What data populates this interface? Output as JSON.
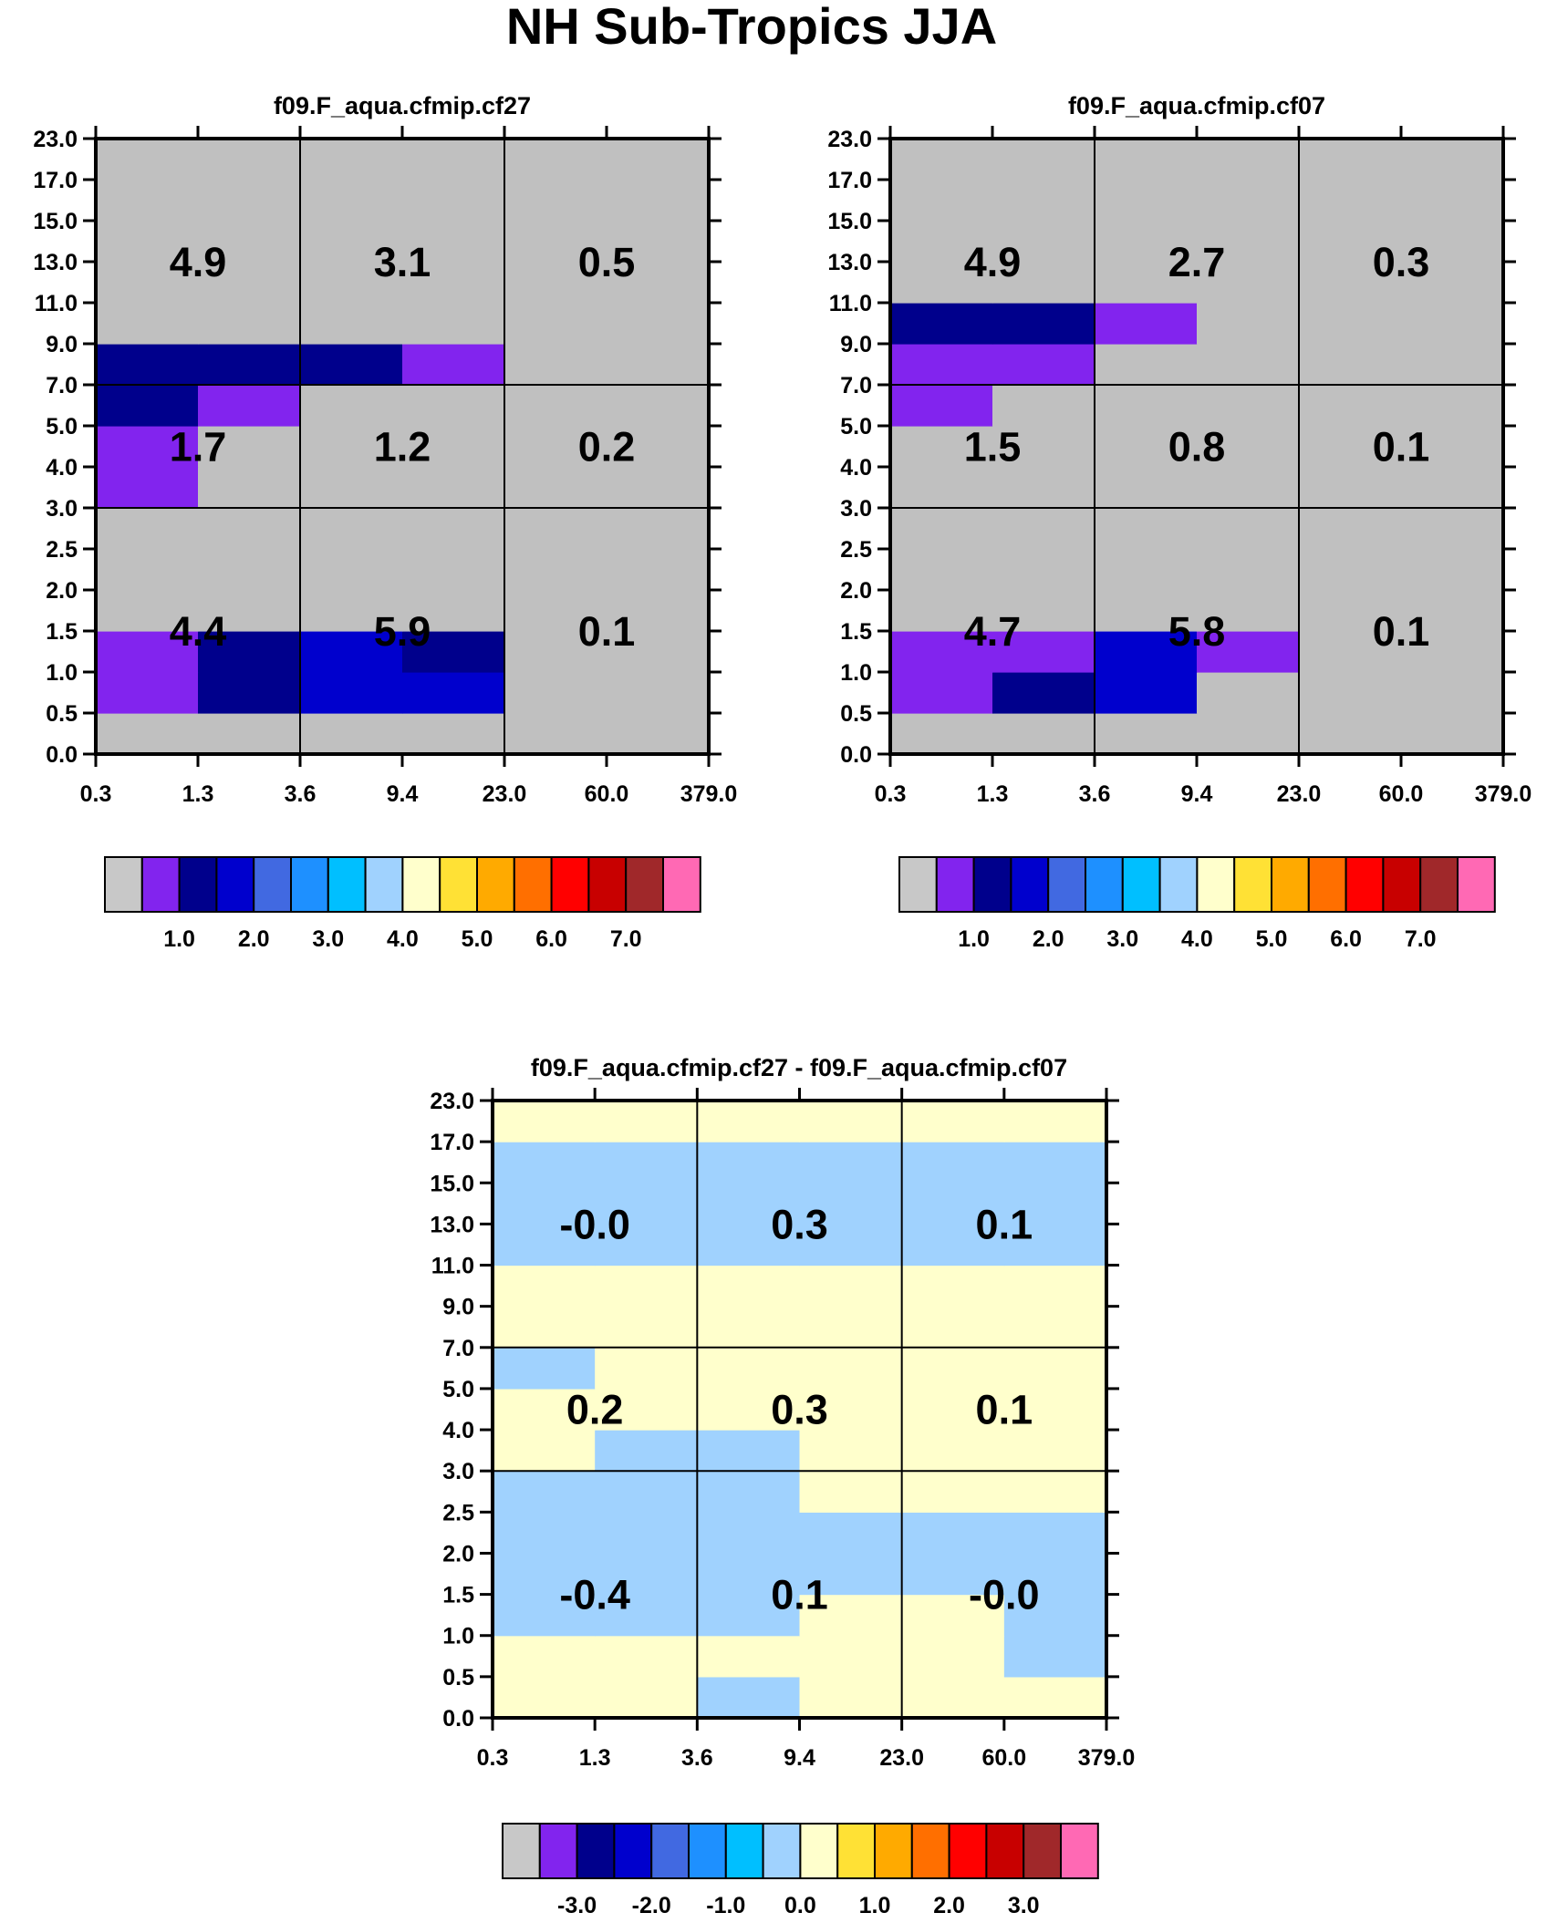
{
  "title": "NH Sub-Tropics JJA",
  "chart_data": [
    {
      "type": "heatmap",
      "name": "panel-cf27",
      "title": "f09.F_aqua.cfmip.cf27",
      "x_ticks": [
        "0.3",
        "1.3",
        "3.6",
        "9.4",
        "23.0",
        "60.0",
        "379.0"
      ],
      "y_ticks": [
        "0.0",
        "0.5",
        "1.0",
        "1.5",
        "2.0",
        "2.5",
        "3.0",
        "4.0",
        "5.0",
        "7.0",
        "9.0",
        "11.0",
        "13.0",
        "15.0",
        "17.0",
        "23.0"
      ],
      "grid": {
        "x_bins": 6,
        "y_bins": 15,
        "columns_low_to_high_x": "x bin index 0..5",
        "rows_low_to_high_y": "y bin index 0..14"
      },
      "values": [
        [
          0,
          0,
          0,
          0,
          0,
          0
        ],
        [
          1,
          2,
          3,
          3,
          0,
          0
        ],
        [
          1,
          2,
          3,
          2,
          0,
          0
        ],
        [
          0,
          0,
          0,
          0,
          0,
          0
        ],
        [
          0,
          0,
          0,
          0,
          0,
          0
        ],
        [
          0,
          0,
          0,
          0,
          0,
          0
        ],
        [
          1,
          0,
          0,
          0,
          0,
          0
        ],
        [
          1,
          0,
          0,
          0,
          0,
          0
        ],
        [
          2,
          1,
          0,
          0,
          0,
          0
        ],
        [
          2,
          2,
          2,
          1,
          0,
          0
        ],
        [
          0,
          0,
          0,
          0,
          0,
          0
        ],
        [
          0,
          0,
          0,
          0,
          0,
          0
        ],
        [
          0,
          0,
          0,
          0,
          0,
          0
        ],
        [
          0,
          0,
          0,
          0,
          0,
          0
        ],
        [
          0,
          0,
          0,
          0,
          0,
          0
        ]
      ],
      "summary": {
        "x_groups": [
          "0.3-3.6",
          "3.6-23.0",
          "23.0-379.0"
        ],
        "y_groups": [
          "0.0-3.0",
          "3.0-7.0",
          "7.0-23.0"
        ],
        "values": [
          [
            "4.4",
            "5.9",
            "0.1"
          ],
          [
            "1.7",
            "1.2",
            "0.2"
          ],
          [
            "4.9",
            "3.1",
            "0.5"
          ]
        ]
      },
      "colorbar": {
        "labels": [
          "1.0",
          "2.0",
          "3.0",
          "4.0",
          "5.0",
          "6.0",
          "7.0"
        ]
      }
    },
    {
      "type": "heatmap",
      "name": "panel-cf07",
      "title": "f09.F_aqua.cfmip.cf07",
      "x_ticks": [
        "0.3",
        "1.3",
        "3.6",
        "9.4",
        "23.0",
        "60.0",
        "379.0"
      ],
      "y_ticks": [
        "0.0",
        "0.5",
        "1.0",
        "1.5",
        "2.0",
        "2.5",
        "3.0",
        "4.0",
        "5.0",
        "7.0",
        "9.0",
        "11.0",
        "13.0",
        "15.0",
        "17.0",
        "23.0"
      ],
      "grid": {
        "x_bins": 6,
        "y_bins": 15
      },
      "values": [
        [
          0,
          0,
          0,
          0,
          0,
          0
        ],
        [
          1,
          2,
          3,
          0,
          0,
          0
        ],
        [
          1,
          1,
          3,
          1,
          0,
          0
        ],
        [
          0,
          0,
          0,
          0,
          0,
          0
        ],
        [
          0,
          0,
          0,
          0,
          0,
          0
        ],
        [
          0,
          0,
          0,
          0,
          0,
          0
        ],
        [
          0,
          0,
          0,
          0,
          0,
          0
        ],
        [
          0,
          0,
          0,
          0,
          0,
          0
        ],
        [
          1,
          0,
          0,
          0,
          0,
          0
        ],
        [
          1,
          1,
          0,
          0,
          0,
          0
        ],
        [
          2,
          2,
          1,
          0,
          0,
          0
        ],
        [
          0,
          0,
          0,
          0,
          0,
          0
        ],
        [
          0,
          0,
          0,
          0,
          0,
          0
        ],
        [
          0,
          0,
          0,
          0,
          0,
          0
        ],
        [
          0,
          0,
          0,
          0,
          0,
          0
        ]
      ],
      "summary": {
        "x_groups": [
          "0.3-3.6",
          "3.6-23.0",
          "23.0-379.0"
        ],
        "y_groups": [
          "0.0-3.0",
          "3.0-7.0",
          "7.0-23.0"
        ],
        "values": [
          [
            "4.7",
            "5.8",
            "0.1"
          ],
          [
            "1.5",
            "0.8",
            "0.1"
          ],
          [
            "4.9",
            "2.7",
            "0.3"
          ]
        ]
      },
      "colorbar": {
        "labels": [
          "1.0",
          "2.0",
          "3.0",
          "4.0",
          "5.0",
          "6.0",
          "7.0"
        ]
      }
    },
    {
      "type": "heatmap",
      "name": "panel-diff",
      "title": "f09.F_aqua.cfmip.cf27 - f09.F_aqua.cfmip.cf07",
      "x_ticks": [
        "0.3",
        "1.3",
        "3.6",
        "9.4",
        "23.0",
        "60.0",
        "379.0"
      ],
      "y_ticks": [
        "0.0",
        "0.5",
        "1.0",
        "1.5",
        "2.0",
        "2.5",
        "3.0",
        "4.0",
        "5.0",
        "7.0",
        "9.0",
        "11.0",
        "13.0",
        "15.0",
        "17.0",
        "23.0"
      ],
      "grid": {
        "x_bins": 6,
        "y_bins": 15
      },
      "values": [
        [
          0,
          0,
          -1,
          0,
          0,
          0
        ],
        [
          0,
          0,
          0,
          0,
          0,
          -1
        ],
        [
          -1,
          -1,
          -1,
          0,
          0,
          -1
        ],
        [
          -1,
          -1,
          -1,
          -1,
          -1,
          -1
        ],
        [
          -1,
          -1,
          -1,
          -1,
          -1,
          -1
        ],
        [
          -1,
          -1,
          -1,
          0,
          0,
          0
        ],
        [
          0,
          -1,
          -1,
          0,
          0,
          0
        ],
        [
          0,
          0,
          0,
          0,
          0,
          0
        ],
        [
          -1,
          0,
          0,
          0,
          0,
          0
        ],
        [
          0,
          0,
          0,
          0,
          0,
          0
        ],
        [
          0,
          0,
          0,
          0,
          0,
          0
        ],
        [
          -1,
          -1,
          -1,
          -1,
          -1,
          -1
        ],
        [
          -1,
          -1,
          -1,
          -1,
          -1,
          -1
        ],
        [
          -1,
          -1,
          -1,
          -1,
          -1,
          -1
        ],
        [
          0,
          0,
          0,
          0,
          0,
          0
        ]
      ],
      "summary": {
        "x_groups": [
          "0.3-3.6",
          "3.6-23.0",
          "23.0-379.0"
        ],
        "y_groups": [
          "0.0-3.0",
          "3.0-7.0",
          "7.0-23.0"
        ],
        "values": [
          [
            "-0.4",
            "0.1",
            "-0.0"
          ],
          [
            "0.2",
            "0.3",
            "0.1"
          ],
          [
            "-0.0",
            "0.3",
            "0.1"
          ]
        ]
      },
      "colorbar": {
        "labels": [
          "-3.0",
          "-2.0",
          "-1.0",
          "0.0",
          "1.0",
          "2.0",
          "3.0"
        ]
      }
    }
  ],
  "colors": {
    "missing": "#c0c0c0",
    "abs_scale": {
      "0": "#c0c0c0",
      "1": "#8224ee",
      "2": "#00008c",
      "3": "#0000cd"
    },
    "diff_scale": {
      "0": "#ffffcc",
      "-1": "#a0d2fe"
    },
    "colorbar_swatches": [
      "#c8c8c8",
      "#8224ee",
      "#00008c",
      "#0000cd",
      "#4169e1",
      "#1e90ff",
      "#00bfff",
      "#a0d2fe",
      "#ffffcc",
      "#ffe135",
      "#ffaa00",
      "#ff6f00",
      "#ff0000",
      "#c80000",
      "#a0282a",
      "#ff69b4"
    ]
  }
}
